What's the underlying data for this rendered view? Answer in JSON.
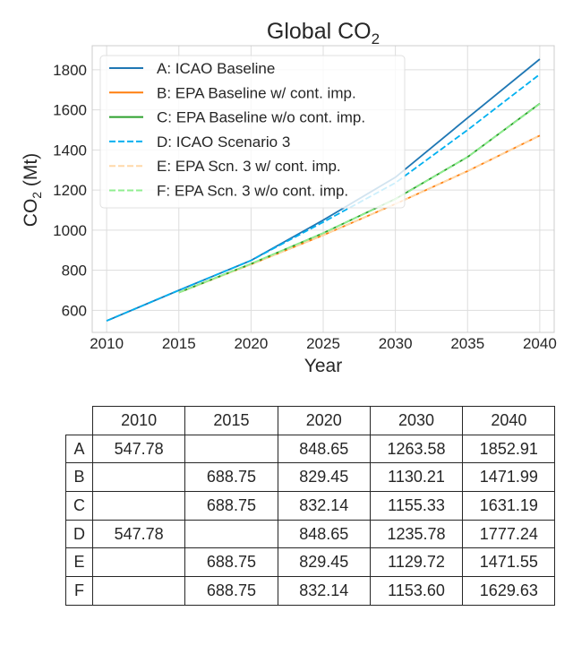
{
  "chart_data": {
    "type": "line",
    "title": "Global CO",
    "title_sub": "2",
    "xlabel": "Year",
    "ylabel_main": "CO",
    "ylabel_sub": "2",
    "ylabel_tail": " (Mt)",
    "xlim": [
      2009,
      2041
    ],
    "ylim": [
      490,
      1920
    ],
    "xticks": [
      2010,
      2015,
      2020,
      2025,
      2030,
      2035,
      2040
    ],
    "yticks": [
      600,
      800,
      1000,
      1200,
      1400,
      1600,
      1800
    ],
    "grid": true,
    "legend_position": "upper-left",
    "series": [
      {
        "name": "A: ICAO Baseline",
        "color": "#1f77b4",
        "dash": "solid",
        "x": [
          2010,
          2015,
          2020,
          2025,
          2030,
          2035,
          2040
        ],
        "values": [
          547.78,
          700,
          848.65,
          1050,
          1263.58,
          1560,
          1852.91
        ]
      },
      {
        "name": "B: EPA Baseline w/ cont. imp.",
        "color": "#ff7f0e",
        "dash": "solid",
        "x": [
          2015,
          2020,
          2025,
          2030,
          2035,
          2040
        ],
        "values": [
          688.75,
          829.45,
          975,
          1130.21,
          1295,
          1471.99
        ]
      },
      {
        "name": "C: EPA Baseline w/o cont. imp.",
        "color": "#2ca02c",
        "dash": "solid",
        "x": [
          2015,
          2020,
          2025,
          2030,
          2035,
          2040
        ],
        "values": [
          688.75,
          832.14,
          985,
          1155.33,
          1365,
          1631.19
        ]
      },
      {
        "name": "D: ICAO Scenario 3",
        "color": "#00b0f0",
        "dash": "dashed",
        "x": [
          2010,
          2015,
          2020,
          2025,
          2030,
          2035,
          2040
        ],
        "values": [
          547.78,
          700,
          848.65,
          1040,
          1235.78,
          1500,
          1777.24
        ]
      },
      {
        "name": "E: EPA Scn. 3 w/ cont. imp.",
        "color": "#ffd8a8",
        "dash": "dashed",
        "x": [
          2015,
          2020,
          2025,
          2030,
          2035,
          2040
        ],
        "values": [
          688.75,
          829.45,
          975,
          1129.72,
          1295,
          1471.55
        ]
      },
      {
        "name": "F: EPA Scn. 3 w/o cont. imp.",
        "color": "#90ee90",
        "dash": "dashed",
        "x": [
          2015,
          2020,
          2025,
          2030,
          2035,
          2040
        ],
        "values": [
          688.75,
          832.14,
          985,
          1153.6,
          1365,
          1629.63
        ]
      }
    ]
  },
  "table": {
    "columns": [
      "2010",
      "2015",
      "2020",
      "2030",
      "2040"
    ],
    "rows": [
      {
        "label": "A",
        "cells": [
          "547.78",
          "",
          "848.65",
          "1263.58",
          "1852.91"
        ]
      },
      {
        "label": "B",
        "cells": [
          "",
          "688.75",
          "829.45",
          "1130.21",
          "1471.99"
        ]
      },
      {
        "label": "C",
        "cells": [
          "",
          "688.75",
          "832.14",
          "1155.33",
          "1631.19"
        ]
      },
      {
        "label": "D",
        "cells": [
          "547.78",
          "",
          "848.65",
          "1235.78",
          "1777.24"
        ]
      },
      {
        "label": "E",
        "cells": [
          "",
          "688.75",
          "829.45",
          "1129.72",
          "1471.55"
        ]
      },
      {
        "label": "F",
        "cells": [
          "",
          "688.75",
          "832.14",
          "1153.60",
          "1629.63"
        ]
      }
    ]
  }
}
